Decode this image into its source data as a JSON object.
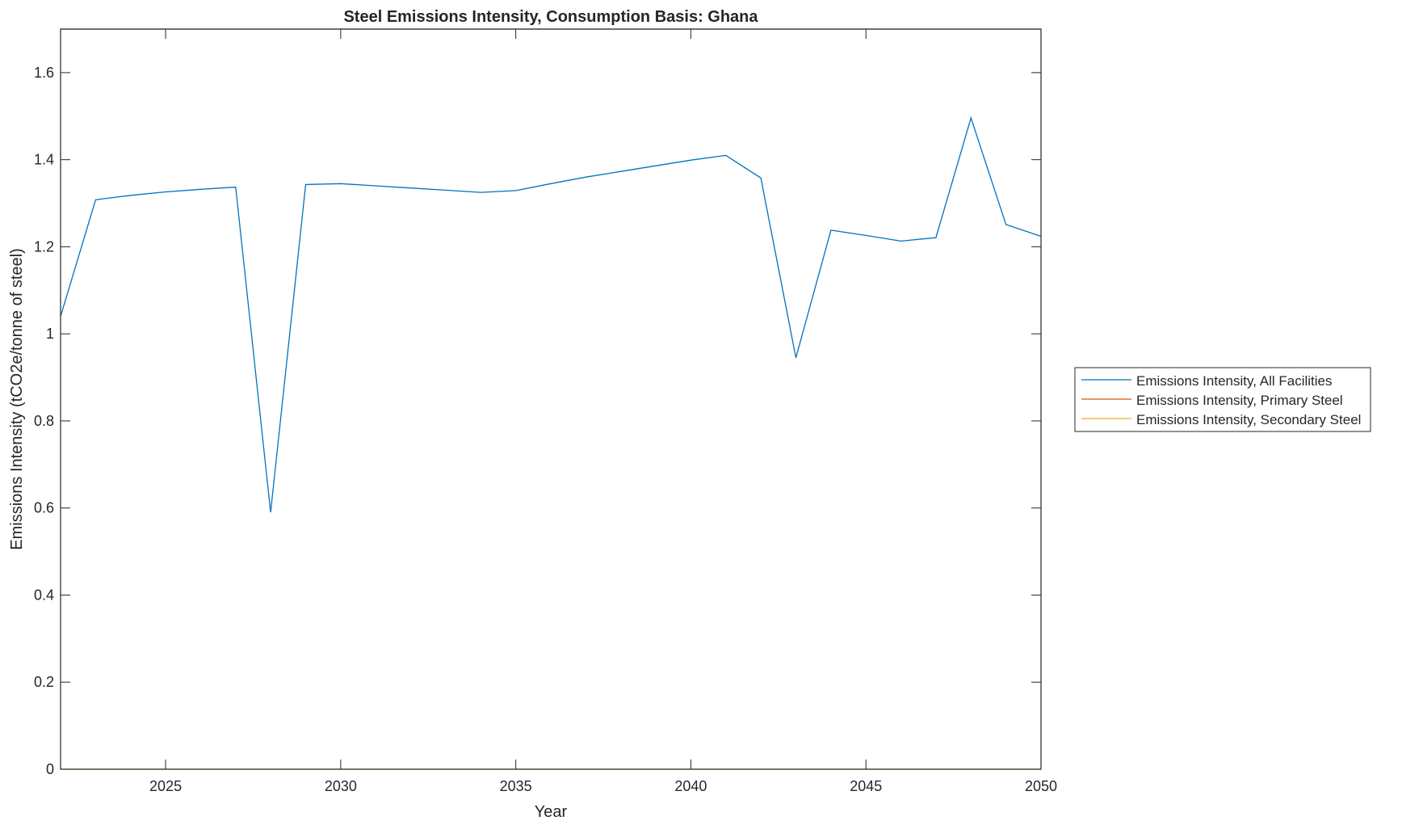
{
  "chart_data": {
    "type": "line",
    "title": "Steel Emissions Intensity, Consumption Basis: Ghana",
    "xlabel": "Year",
    "ylabel": "Emissions Intensity (tCO2e/tonne of steel)",
    "xlim": [
      2022,
      2050
    ],
    "ylim": [
      0,
      1.7
    ],
    "xticks": [
      2025,
      2030,
      2035,
      2040,
      2045,
      2050
    ],
    "yticks": [
      0,
      0.2,
      0.4,
      0.6,
      0.8,
      1,
      1.2,
      1.4,
      1.6
    ],
    "ytick_labels": [
      "0",
      "0.2",
      "0.4",
      "0.6",
      "0.8",
      "1",
      "1.2",
      "1.4",
      "1.6"
    ],
    "grid": false,
    "legend_position": "outside-right",
    "x": [
      2022,
      2023,
      2024,
      2025,
      2026,
      2027,
      2028,
      2029,
      2030,
      2031,
      2032,
      2033,
      2034,
      2035,
      2036,
      2037,
      2038,
      2039,
      2040,
      2041,
      2042,
      2043,
      2044,
      2045,
      2046,
      2047,
      2048,
      2049,
      2050
    ],
    "series": [
      {
        "name": "Emissions Intensity, All Facilities",
        "color": "#0072BD",
        "values": [
          1.04,
          1.308,
          1.318,
          1.326,
          1.332,
          1.337,
          0.59,
          1.343,
          1.345,
          1.34,
          1.335,
          1.33,
          1.325,
          1.329,
          1.345,
          1.36,
          1.373,
          1.386,
          1.399,
          1.41,
          1.358,
          0.945,
          1.238,
          1.226,
          1.213,
          1.221,
          1.496,
          1.251,
          1.224
        ]
      },
      {
        "name": "Emissions Intensity, Primary Steel",
        "color": "#D95319",
        "values": [
          1.7,
          1.7,
          1.7,
          1.7,
          1.7,
          1.7,
          1.7,
          1.7,
          1.7,
          1.7,
          1.7,
          1.7,
          1.7,
          1.7,
          1.7,
          1.7,
          1.7,
          1.7,
          1.7,
          1.7,
          1.7,
          1.7,
          1.7,
          1.7,
          1.7,
          1.7,
          1.7,
          1.7,
          1.7
        ]
      },
      {
        "name": "Emissions Intensity, Secondary Steel",
        "color": "#EDB120",
        "values": [
          0,
          0,
          0,
          0,
          0,
          0,
          0,
          0,
          0,
          0,
          0,
          0,
          0,
          0,
          0,
          0,
          0,
          0,
          0,
          0,
          0,
          0,
          0,
          0,
          0,
          0,
          0,
          0,
          0
        ]
      }
    ]
  }
}
